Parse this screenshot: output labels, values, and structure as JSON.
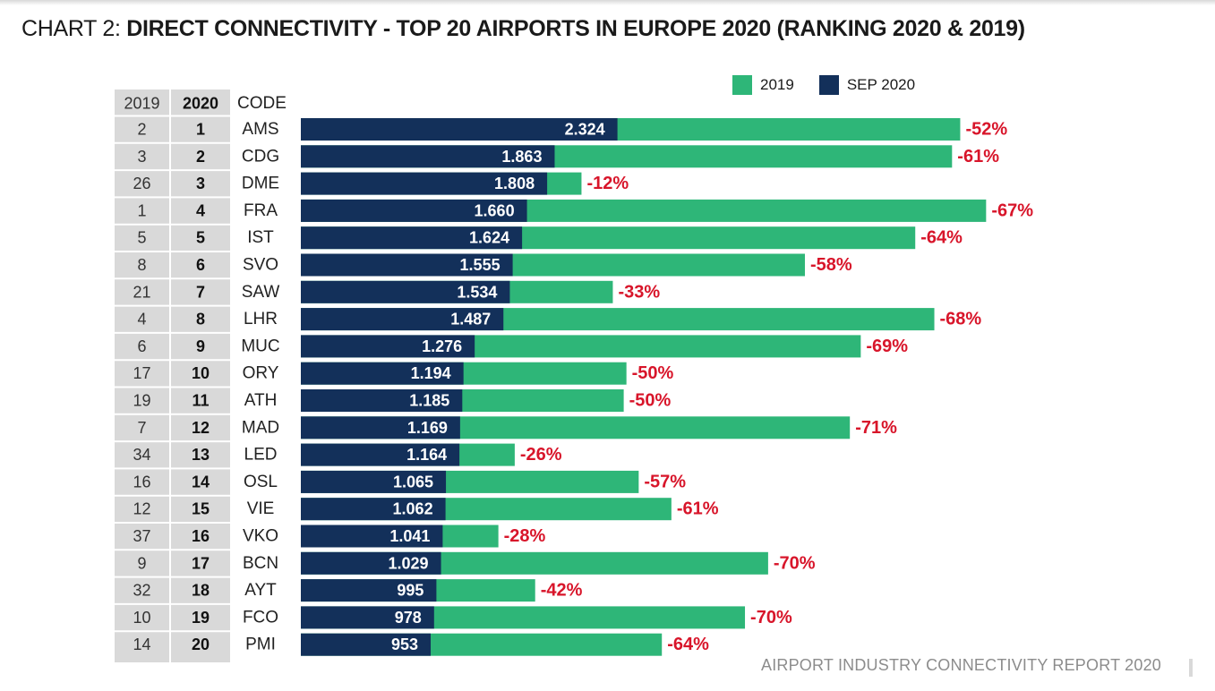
{
  "header": {
    "prefix": "CHART 2: ",
    "title_bold": "DIRECT CONNECTIVITY - TOP 20 AIRPORTS IN EUROPE 2020 (RANKING 2020 & 2019)"
  },
  "footer": {
    "text": "AIRPORT INDUSTRY CONNECTIVITY REPORT 2020"
  },
  "colors": {
    "sep2020": "#13305a",
    "y2019": "#2eb678",
    "change": "#d8152a",
    "rank_cell": "#d9d9d9"
  },
  "chart_data": {
    "type": "bar",
    "orientation": "horizontal",
    "legend_position": "top-right",
    "grid": false,
    "table_headers": {
      "rank_2019": "2019",
      "rank_2020": "2020",
      "code": "CODE"
    },
    "categories": [
      "AMS",
      "CDG",
      "DME",
      "FRA",
      "IST",
      "SVO",
      "SAW",
      "LHR",
      "MUC",
      "ORY",
      "ATH",
      "MAD",
      "LED",
      "OSL",
      "VIE",
      "VKO",
      "BCN",
      "AYT",
      "FCO",
      "PMI"
    ],
    "rank_2019": [
      "2",
      "3",
      "26",
      "1",
      "5",
      "8",
      "21",
      "4",
      "6",
      "17",
      "19",
      "7",
      "34",
      "16",
      "12",
      "37",
      "9",
      "32",
      "10",
      "14"
    ],
    "rank_2020": [
      "1",
      "2",
      "3",
      "4",
      "5",
      "6",
      "7",
      "8",
      "9",
      "10",
      "11",
      "12",
      "13",
      "14",
      "15",
      "16",
      "17",
      "18",
      "19",
      "20"
    ],
    "series": [
      {
        "name": "SEP 2020",
        "values": [
          2324,
          1863,
          1808,
          1660,
          1624,
          1555,
          1534,
          1487,
          1276,
          1194,
          1185,
          1169,
          1164,
          1065,
          1062,
          1041,
          1029,
          995,
          978,
          953
        ],
        "labels": [
          "2.324",
          "1.863",
          "1.808",
          "1.660",
          "1.624",
          "1.555",
          "1.534",
          "1.487",
          "1.276",
          "1.194",
          "1.185",
          "1.169",
          "1.164",
          "1.065",
          "1.062",
          "1.041",
          "1.029",
          "995",
          "978",
          "953"
        ]
      },
      {
        "name": "2019",
        "values": [
          4840,
          4780,
          2060,
          5030,
          4510,
          3700,
          2290,
          4650,
          4110,
          2390,
          2370,
          4030,
          1570,
          2480,
          2720,
          1450,
          3430,
          1720,
          3260,
          2650
        ]
      }
    ],
    "change_labels": [
      "-52%",
      "-61%",
      "-12%",
      "-67%",
      "-64%",
      "-58%",
      "-33%",
      "-68%",
      "-69%",
      "-50%",
      "-50%",
      "-71%",
      "-26%",
      "-57%",
      "-61%",
      "-28%",
      "-70%",
      "-42%",
      "-70%",
      "-64%"
    ],
    "xlim": [
      0,
      5100
    ]
  }
}
